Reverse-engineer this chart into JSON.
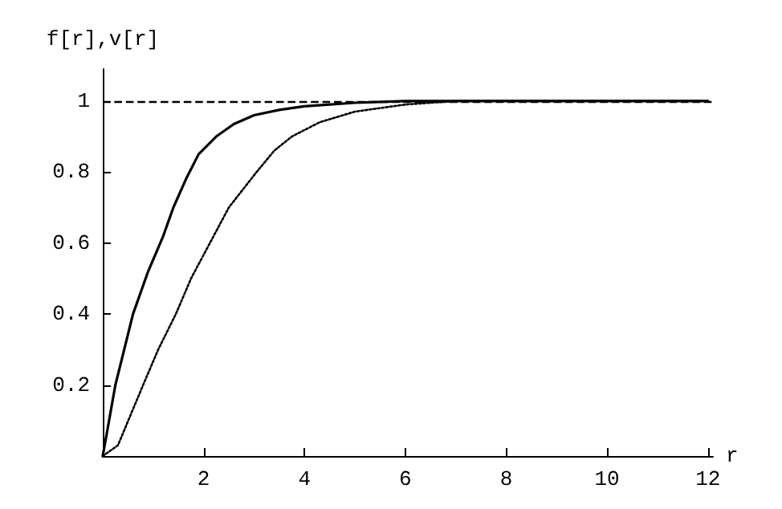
{
  "chart_data": {
    "type": "line",
    "ylabel": "f[r],v[r]",
    "xlabel": "r",
    "xlim": [
      0,
      12.1
    ],
    "ylim": [
      0,
      1.09
    ],
    "xticks": [
      2,
      4,
      6,
      8,
      10,
      12
    ],
    "yticks": [
      0.2,
      0.4,
      0.6,
      0.8,
      1
    ],
    "grid": false,
    "marker": "none",
    "series": [
      {
        "color": "#000000",
        "line_style": "solid",
        "x": [
          0,
          0.25,
          0.6,
          0.9,
          1.2,
          1.4,
          1.65,
          1.9,
          2.25,
          2.6,
          3,
          3.5,
          4,
          5,
          6,
          12
        ],
        "values": [
          0,
          0.2,
          0.4,
          0.52,
          0.62,
          0.7,
          0.78,
          0.85,
          0.9,
          0.935,
          0.96,
          0.975,
          0.985,
          0.995,
          1,
          1
        ]
      },
      {
        "color": "#000000",
        "line_style": "dotted",
        "x": [
          0,
          0.3,
          0.8,
          1.1,
          1.45,
          1.75,
          2.05,
          2.5,
          3.05,
          3.4,
          3.75,
          4.3,
          5,
          6,
          7,
          12
        ],
        "values": [
          0,
          0.03,
          0.2,
          0.3,
          0.4,
          0.5,
          0.58,
          0.7,
          0.8,
          0.86,
          0.9,
          0.94,
          0.97,
          0.99,
          1,
          1
        ]
      }
    ],
    "ref_lines": [
      {
        "axis": "y",
        "value": 1,
        "line_style": "dashed",
        "color": "#000000"
      }
    ]
  }
}
